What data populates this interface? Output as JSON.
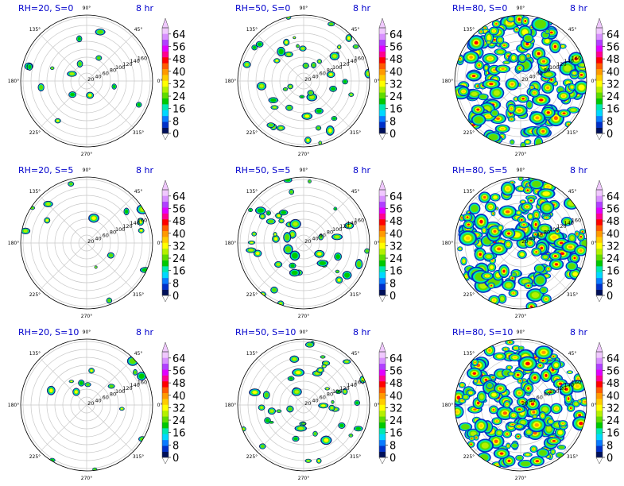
{
  "chart_data": [
    {
      "type": "heatmap",
      "title": "RH=20, S=0",
      "time_label": "8 hr",
      "angle_tick_labels": [
        "90°",
        "45°",
        "0°",
        "315°",
        "270°",
        "225°",
        "180°",
        "135°"
      ],
      "radial_tick_labels": [
        "20",
        "40",
        "60",
        "80",
        "100",
        "120",
        "140",
        "160"
      ],
      "colorbar": {
        "ticks": [
          "0",
          "8",
          "16",
          "24",
          "32",
          "40",
          "48",
          "56",
          "64"
        ],
        "range": [
          0,
          68
        ],
        "extend": "both"
      },
      "coverage": "sparse"
    },
    {
      "type": "heatmap",
      "title": "RH=50, S=0",
      "time_label": "8 hr",
      "angle_tick_labels": [
        "90°",
        "45°",
        "0°",
        "315°",
        "270°",
        "225°",
        "180°",
        "135°"
      ],
      "radial_tick_labels": [
        "20",
        "40",
        "60",
        "80",
        "100",
        "120",
        "140",
        "160"
      ],
      "colorbar": {
        "ticks": [
          "0",
          "8",
          "16",
          "24",
          "32",
          "40",
          "48",
          "56",
          "64"
        ],
        "range": [
          0,
          68
        ],
        "extend": "both"
      },
      "coverage": "moderate"
    },
    {
      "type": "heatmap",
      "title": "RH=80, S=0",
      "time_label": "8 hr",
      "angle_tick_labels": [
        "90°",
        "45°",
        "0°",
        "315°",
        "270°",
        "225°",
        "180°",
        "135°"
      ],
      "radial_tick_labels": [
        "20",
        "40",
        "60",
        "80",
        "100",
        "120",
        "140",
        "160"
      ],
      "colorbar": {
        "ticks": [
          "0",
          "8",
          "16",
          "24",
          "32",
          "40",
          "48",
          "56",
          "64"
        ],
        "range": [
          0,
          68
        ],
        "extend": "both"
      },
      "coverage": "dense"
    },
    {
      "type": "heatmap",
      "title": "RH=20, S=5",
      "time_label": "8 hr",
      "angle_tick_labels": [
        "90°",
        "45°",
        "0°",
        "315°",
        "270°",
        "225°",
        "180°",
        "135°"
      ],
      "radial_tick_labels": [
        "20",
        "40",
        "60",
        "80",
        "100",
        "120",
        "140",
        "160"
      ],
      "colorbar": {
        "ticks": [
          "0",
          "8",
          "16",
          "24",
          "32",
          "40",
          "48",
          "56",
          "64"
        ],
        "range": [
          0,
          68
        ],
        "extend": "both"
      },
      "coverage": "sparse"
    },
    {
      "type": "heatmap",
      "title": "RH=50, S=5",
      "time_label": "8 hr",
      "angle_tick_labels": [
        "90°",
        "45°",
        "0°",
        "315°",
        "270°",
        "225°",
        "180°",
        "135°"
      ],
      "radial_tick_labels": [
        "20",
        "40",
        "60",
        "80",
        "100",
        "120",
        "140",
        "160"
      ],
      "colorbar": {
        "ticks": [
          "0",
          "8",
          "16",
          "24",
          "32",
          "40",
          "48",
          "56",
          "64"
        ],
        "range": [
          0,
          68
        ],
        "extend": "both"
      },
      "coverage": "moderate"
    },
    {
      "type": "heatmap",
      "title": "RH=80, S=5",
      "time_label": "8 hr",
      "angle_tick_labels": [
        "90°",
        "45°",
        "0°",
        "315°",
        "270°",
        "225°",
        "180°",
        "135°"
      ],
      "radial_tick_labels": [
        "20",
        "40",
        "60",
        "80",
        "100",
        "120",
        "140",
        "160"
      ],
      "colorbar": {
        "ticks": [
          "0",
          "8",
          "16",
          "24",
          "32",
          "40",
          "48",
          "56",
          "64"
        ],
        "range": [
          0,
          68
        ],
        "extend": "both"
      },
      "coverage": "dense"
    },
    {
      "type": "heatmap",
      "title": "RH=20, S=10",
      "time_label": "8 hr",
      "angle_tick_labels": [
        "90°",
        "45°",
        "0°",
        "315°",
        "270°",
        "225°",
        "180°",
        "135°"
      ],
      "radial_tick_labels": [
        "20",
        "40",
        "60",
        "80",
        "100",
        "120",
        "140",
        "160"
      ],
      "colorbar": {
        "ticks": [
          "0",
          "8",
          "16",
          "24",
          "32",
          "40",
          "48",
          "56",
          "64"
        ],
        "range": [
          0,
          68
        ],
        "extend": "both"
      },
      "coverage": "sparse"
    },
    {
      "type": "heatmap",
      "title": "RH=50, S=10",
      "time_label": "8 hr",
      "angle_tick_labels": [
        "90°",
        "45°",
        "0°",
        "315°",
        "270°",
        "225°",
        "180°",
        "135°"
      ],
      "radial_tick_labels": [
        "20",
        "40",
        "60",
        "80",
        "100",
        "120",
        "140",
        "160"
      ],
      "colorbar": {
        "ticks": [
          "0",
          "8",
          "16",
          "24",
          "32",
          "40",
          "48",
          "56",
          "64"
        ],
        "range": [
          0,
          68
        ],
        "extend": "both"
      },
      "coverage": "moderate"
    },
    {
      "type": "heatmap",
      "title": "RH=80, S=10",
      "time_label": "8 hr",
      "angle_tick_labels": [
        "90°",
        "45°",
        "0°",
        "315°",
        "270°",
        "225°",
        "180°",
        "135°"
      ],
      "radial_tick_labels": [
        "20",
        "40",
        "60",
        "80",
        "100",
        "120",
        "140",
        "160"
      ],
      "colorbar": {
        "ticks": [
          "0",
          "8",
          "16",
          "24",
          "32",
          "40",
          "48",
          "56",
          "64"
        ],
        "range": [
          0,
          68
        ],
        "extend": "both"
      },
      "coverage": "dense"
    }
  ],
  "colormap": [
    "#00105a",
    "#0030c8",
    "#0a7bff",
    "#00d8ff",
    "#00e8b0",
    "#00c800",
    "#5fdc00",
    "#b4f000",
    "#ffff00",
    "#ffcc00",
    "#ff9900",
    "#ff5a00",
    "#ff0000",
    "#ff0090",
    "#e000ff",
    "#b040ff",
    "#d890ff",
    "#f0c8ff"
  ]
}
